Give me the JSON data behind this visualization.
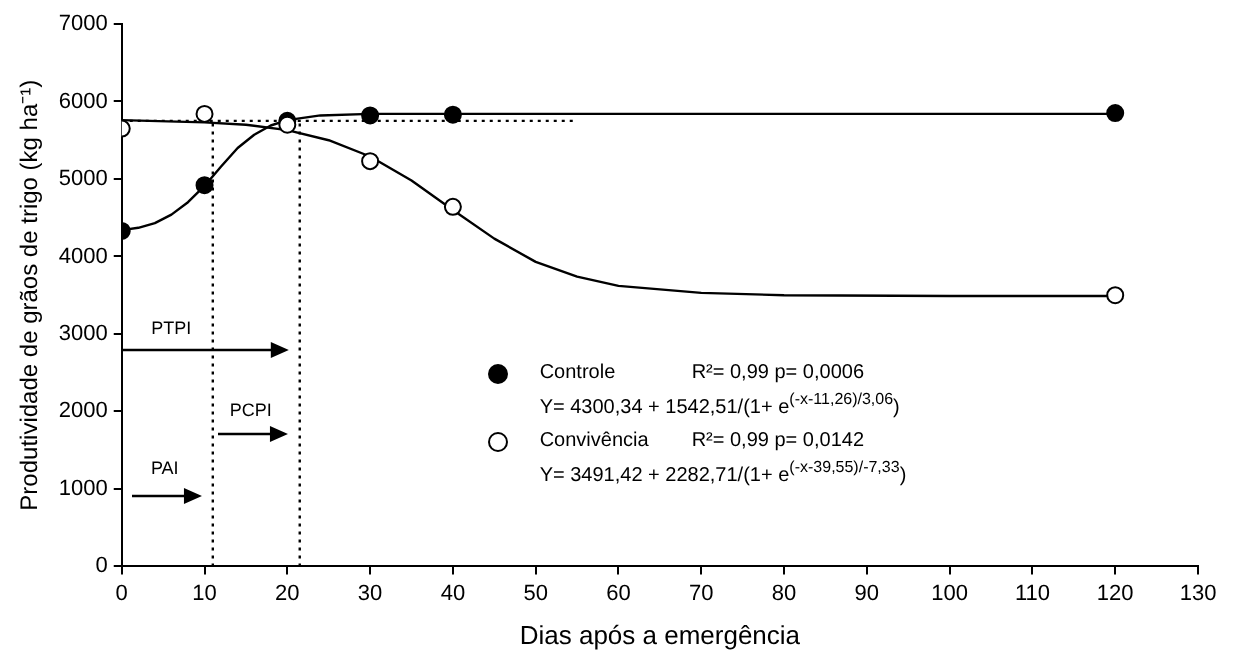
{
  "chart_data": {
    "type": "scatter",
    "xlabel": "Dias após a emergência",
    "ylabel": "Produtividade de grãos de trigo (kg ha⁻¹)",
    "xlim": [
      0,
      130
    ],
    "xticks": [
      0,
      10,
      20,
      30,
      40,
      50,
      60,
      70,
      80,
      90,
      100,
      110,
      120,
      130
    ],
    "ylim": [
      0,
      7000
    ],
    "yticks": [
      0,
      1000,
      2000,
      3000,
      4000,
      5000,
      6000,
      7000
    ],
    "legend": "bottom",
    "grid": false,
    "series": [
      {
        "name": "Controle",
        "marker": "circle",
        "color": "#000000",
        "x": [
          0,
          10,
          20,
          30,
          40,
          120
        ],
        "values": [
          4330,
          4920,
          5750,
          5820,
          5830,
          5850
        ]
      },
      {
        "name": "Convivência",
        "marker": "circle",
        "color": "#ffffff",
        "x": [
          0,
          10,
          20,
          30,
          40,
          120
        ],
        "values": [
          5650,
          5840,
          5700,
          5230,
          4640,
          3500
        ]
      },
      {
        "type": "line",
        "marker": "none",
        "line_style": "solid",
        "color": "#000000",
        "x": [
          0,
          2,
          4,
          6,
          8,
          10,
          12,
          14,
          16,
          18,
          20,
          24,
          30,
          60,
          120
        ],
        "values": [
          4340,
          4370,
          4430,
          4540,
          4700,
          4910,
          5160,
          5400,
          5570,
          5690,
          5760,
          5820,
          5840,
          5840,
          5840
        ]
      },
      {
        "type": "line",
        "marker": "none",
        "line_style": "solid",
        "color": "#000000",
        "x": [
          0,
          10,
          15,
          20,
          25,
          30,
          35,
          40,
          45,
          50,
          55,
          60,
          70,
          80,
          100,
          120
        ],
        "values": [
          5760,
          5730,
          5700,
          5630,
          5500,
          5290,
          4980,
          4600,
          4230,
          3930,
          3740,
          3620,
          3530,
          3500,
          3490,
          3490
        ]
      },
      {
        "type": "line",
        "marker": "none",
        "line_style": "dotted",
        "color": "#000000",
        "x": [
          0,
          55
        ],
        "values": [
          5750,
          5750
        ]
      },
      {
        "type": "line",
        "marker": "none",
        "line_style": "dotted",
        "color": "#000000",
        "x": [
          11,
          11
        ],
        "values": [
          0,
          5750
        ]
      },
      {
        "type": "line",
        "marker": "none",
        "line_style": "dotted",
        "color": "#000000",
        "x": [
          21.5,
          21.5
        ],
        "values": [
          0,
          5750
        ]
      }
    ],
    "annotations": [
      "R²= 0,99   p= 0,0006",
      "Y= 4300,34 + 1542,51/(1+ e$^{(-x-11,26)/3,06}$)",
      "R²= 0,99   p= 0,0142",
      "Y= 3491,42 + 2282,71/(1+ e$^{(-x-39,55)/-7,33}$)",
      "PTPI",
      "PCPI",
      "PAI"
    ]
  }
}
